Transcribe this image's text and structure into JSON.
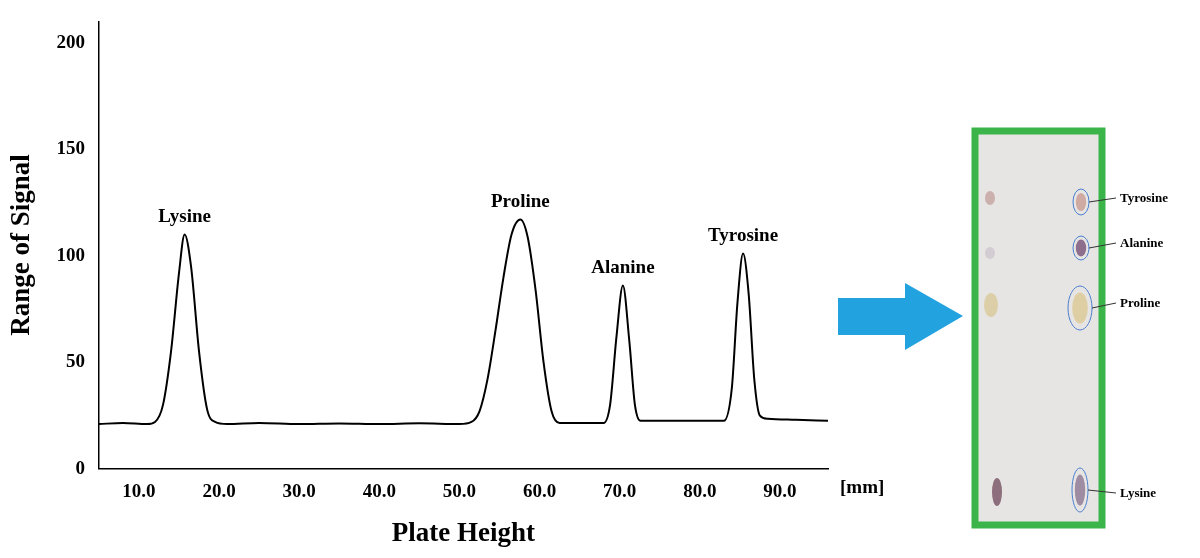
{
  "chart_data": {
    "type": "line",
    "x_label": "Plate Height",
    "y_label": "Range of Signal",
    "x_unit": "[mm]",
    "x": [
      5,
      8,
      11,
      12,
      13,
      14,
      15,
      15.7,
      16.5,
      17.5,
      18.5,
      19.5,
      21,
      25,
      30,
      35,
      40,
      45,
      50,
      51.5,
      52.5,
      53.5,
      54.5,
      55.5,
      56.5,
      57.6,
      58.5,
      59.5,
      60.5,
      61.5,
      62.5,
      65,
      68,
      68.8,
      69.6,
      70.4,
      71.2,
      71.9,
      72.6,
      78,
      83,
      84,
      84.7,
      85.4,
      86.1,
      86.8,
      87.5,
      88.5,
      92,
      96
    ],
    "values": [
      21,
      21.5,
      21,
      22,
      30,
      55,
      92,
      110,
      95,
      55,
      28,
      22,
      21,
      21.5,
      21,
      21.3,
      21,
      21.4,
      21,
      22,
      27,
      42,
      65,
      90,
      110,
      117,
      109,
      84,
      50,
      27,
      21.5,
      21.5,
      21.5,
      30,
      62,
      86,
      60,
      30,
      22.5,
      22.5,
      22.5,
      38,
      78,
      101,
      82,
      42,
      25,
      23.5,
      23,
      22.5
    ],
    "color": "#000000",
    "xlim": [
      5,
      96
    ],
    "xticks": [
      {
        "value": 10,
        "label": "10.0"
      },
      {
        "value": 20,
        "label": "20.0"
      },
      {
        "value": 30,
        "label": "30.0"
      },
      {
        "value": 40,
        "label": "40.0"
      },
      {
        "value": 50,
        "label": "50.0"
      },
      {
        "value": 60,
        "label": "60.0"
      },
      {
        "value": 70,
        "label": "70.0"
      },
      {
        "value": 80,
        "label": "80.0"
      },
      {
        "value": 90,
        "label": "90.0"
      }
    ],
    "ylim": [
      0,
      210
    ],
    "yticks": [
      0,
      50,
      100,
      150,
      200
    ],
    "grid": false,
    "annotations": [
      {
        "text": "Lysine",
        "x": 15.7
      },
      {
        "text": "Proline",
        "x": 57.6
      },
      {
        "text": "Alanine",
        "x": 70.4
      },
      {
        "text": "Tyrosine",
        "x": 85.4
      }
    ]
  },
  "tlc_plate": {
    "labels": [
      "Tyrosine",
      "Alanine",
      "Proline",
      "Lysine"
    ]
  }
}
